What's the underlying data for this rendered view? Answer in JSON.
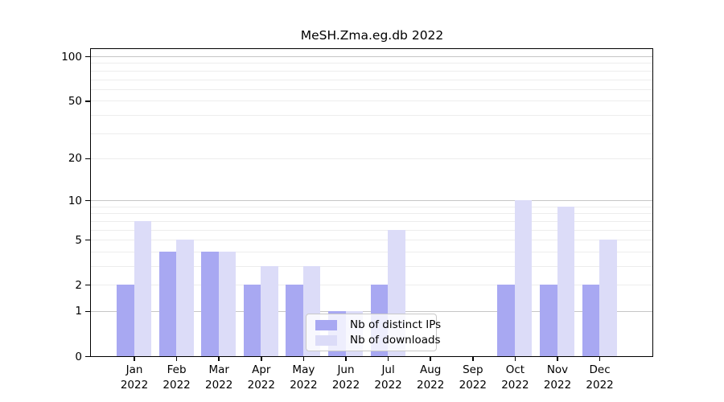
{
  "chart_data": {
    "type": "bar",
    "title": "MeSH.Zma.eg.db 2022",
    "categories": [
      "Jan 2022",
      "Feb 2022",
      "Mar 2022",
      "Apr 2022",
      "May 2022",
      "Jun 2022",
      "Jul 2022",
      "Aug 2022",
      "Sep 2022",
      "Oct 2022",
      "Nov 2022",
      "Dec 2022"
    ],
    "series": [
      {
        "name": "Nb of distinct IPs",
        "color": "#a8a8f2",
        "values": [
          2,
          4,
          4,
          2,
          2,
          1,
          2,
          0,
          0,
          2,
          2,
          2
        ]
      },
      {
        "name": "Nb of downloads",
        "color": "#dcdcf8",
        "values": [
          7,
          5,
          4,
          3,
          3,
          1,
          6,
          0,
          0,
          10,
          9,
          5
        ]
      }
    ],
    "yscale": "log1p",
    "yticks": [
      0,
      1,
      2,
      5,
      10,
      20,
      50,
      100
    ],
    "ylim": [
      0,
      112
    ],
    "grid": true,
    "legend_position": "bottom-center"
  },
  "colors": {
    "bar_ips": "#a8a8f2",
    "bar_downloads": "#dcdcf8",
    "major_gridline": "#c6c6c6",
    "minor_gridline": "#ededed",
    "axis": "#000000",
    "background": "#ffffff"
  }
}
